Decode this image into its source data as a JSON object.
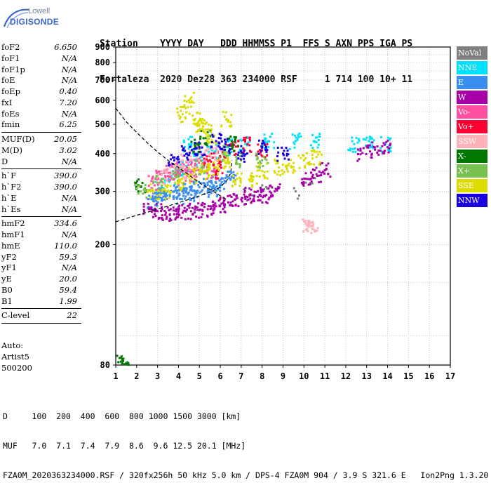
{
  "logo": {
    "line1": "Lowell",
    "line2": "DIGISONDE"
  },
  "header": {
    "row1": "Station    YYYY DAY   DDD HHMMSS P1  FFS S AXN PPS IGA PS",
    "row2": "Fortaleza  2020 Dez28 363 234000 RSF     1 714 100 10+ 11"
  },
  "params": [
    {
      "label": "foF2",
      "value": "6.650"
    },
    {
      "label": "foF1",
      "value": "N/A"
    },
    {
      "label": "foF1p",
      "value": "N/A"
    },
    {
      "label": "foE",
      "value": "N/A"
    },
    {
      "label": "foEp",
      "value": "0.40"
    },
    {
      "label": "fxI",
      "value": "7.20"
    },
    {
      "label": "foEs",
      "value": "N/A"
    },
    {
      "label": "fmin",
      "value": "6.25"
    },
    {
      "sep": true
    },
    {
      "label": "MUF(D)",
      "value": "20.05"
    },
    {
      "label": "M(D)",
      "value": "3.02"
    },
    {
      "label": "D",
      "value": "N/A"
    },
    {
      "sep": true
    },
    {
      "label": "h`F",
      "value": "390.0"
    },
    {
      "label": "h`F2",
      "value": "390.0"
    },
    {
      "label": "h`E",
      "value": "N/A"
    },
    {
      "label": "h`Es",
      "value": "N/A"
    },
    {
      "sep": true
    },
    {
      "label": "hmF2",
      "value": "334.6"
    },
    {
      "label": "hmF1",
      "value": "N/A"
    },
    {
      "label": "hmE",
      "value": "110.0"
    },
    {
      "label": "yF2",
      "value": "59.3"
    },
    {
      "label": "yF1",
      "value": "N/A"
    },
    {
      "label": "yE",
      "value": "20.0"
    },
    {
      "label": "B0",
      "value": "59.4"
    },
    {
      "label": "B1",
      "value": "1.99"
    },
    {
      "sep": true
    },
    {
      "label": "C-level",
      "value": "22"
    },
    {
      "sep": true
    }
  ],
  "auto": {
    "line1": "Auto:",
    "line2": "Artist5",
    "line3": "500200"
  },
  "legend": [
    {
      "label": "NoVal",
      "color": "#808080"
    },
    {
      "label": "NNE",
      "color": "#00e0ff"
    },
    {
      "label": "E",
      "color": "#3b8ef0"
    },
    {
      "label": "W",
      "color": "#a800a8"
    },
    {
      "label": "Vo-",
      "color": "#ff4fa0"
    },
    {
      "label": "Vo+",
      "color": "#ff0033"
    },
    {
      "label": "SSW",
      "color": "#ffb0b8"
    },
    {
      "label": "X-",
      "color": "#007800"
    },
    {
      "label": "X+",
      "color": "#78c050"
    },
    {
      "label": "SSE",
      "color": "#dcdc00"
    },
    {
      "label": "NNW",
      "color": "#1800e0"
    }
  ],
  "chart_data": {
    "type": "scatter",
    "title": "",
    "xlabel": "",
    "ylabel": "",
    "xlim": [
      1,
      17
    ],
    "ylim": [
      80,
      900
    ],
    "y_scale": "log",
    "x_ticks": [
      1,
      2,
      3,
      4,
      5,
      6,
      7,
      8,
      9,
      10,
      11,
      12,
      13,
      14,
      15,
      16,
      17
    ],
    "y_ticks": [
      80,
      200,
      300,
      400,
      500,
      600,
      700,
      800,
      900
    ],
    "grid": true,
    "series": [
      {
        "name": "NoVal",
        "color": "#808080",
        "points": [
          [
            7.4,
            290
          ],
          [
            8.1,
            305
          ],
          [
            9.6,
            300
          ],
          [
            10.3,
            320
          ]
        ]
      },
      {
        "name": "NNE",
        "color": "#00e0ff",
        "points": [
          [
            3.6,
            335
          ],
          [
            4.0,
            350
          ],
          [
            4.4,
            360
          ],
          [
            5.0,
            380
          ],
          [
            5.6,
            410
          ],
          [
            6.3,
            420
          ],
          [
            7.2,
            430
          ],
          [
            8.3,
            440
          ],
          [
            9.6,
            440
          ],
          [
            10.5,
            440
          ],
          [
            12.4,
            430
          ],
          [
            13.1,
            440
          ],
          [
            13.9,
            430
          ],
          [
            4.5,
            430
          ],
          [
            3.2,
            310
          ]
        ]
      },
      {
        "name": "E",
        "color": "#3b8ef0",
        "points": [
          [
            2.6,
            290
          ],
          [
            3.0,
            295
          ],
          [
            3.4,
            295
          ],
          [
            3.8,
            300
          ],
          [
            4.2,
            300
          ],
          [
            4.6,
            305
          ],
          [
            5.0,
            310
          ],
          [
            5.4,
            315
          ],
          [
            5.8,
            320
          ],
          [
            6.2,
            325
          ],
          [
            6.5,
            330
          ],
          [
            4.0,
            290
          ],
          [
            4.8,
            295
          ],
          [
            5.6,
            305
          ],
          [
            3.2,
            285
          ],
          [
            2.8,
            280
          ]
        ]
      },
      {
        "name": "W",
        "color": "#a800a8",
        "points": [
          [
            2.6,
            262
          ],
          [
            3.0,
            258
          ],
          [
            3.4,
            255
          ],
          [
            3.8,
            252
          ],
          [
            4.2,
            255
          ],
          [
            4.6,
            258
          ],
          [
            5.0,
            260
          ],
          [
            5.4,
            262
          ],
          [
            5.8,
            268
          ],
          [
            6.2,
            272
          ],
          [
            6.6,
            278
          ],
          [
            7.0,
            282
          ],
          [
            7.4,
            292
          ],
          [
            7.8,
            288
          ],
          [
            8.2,
            292
          ],
          [
            10.6,
            342
          ],
          [
            11.0,
            352
          ],
          [
            12.8,
            402
          ],
          [
            13.4,
            412
          ],
          [
            14.0,
            420
          ],
          [
            8.6,
            300
          ],
          [
            10.1,
            330
          ]
        ]
      },
      {
        "name": "Vo-",
        "color": "#ff4fa0",
        "points": [
          [
            3.2,
            340
          ],
          [
            3.6,
            345
          ],
          [
            4.0,
            355
          ],
          [
            4.4,
            360
          ],
          [
            4.8,
            365
          ],
          [
            5.2,
            360
          ],
          [
            5.6,
            350
          ],
          [
            3.8,
            330
          ],
          [
            4.6,
            340
          ],
          [
            2.8,
            320
          ]
        ]
      },
      {
        "name": "Vo+",
        "color": "#ff0033",
        "points": [
          [
            5.5,
            380
          ],
          [
            6.0,
            390
          ],
          [
            6.6,
            420
          ],
          [
            7.3,
            430
          ],
          [
            8.0,
            410
          ],
          [
            5.9,
            350
          ]
        ]
      },
      {
        "name": "SSW",
        "color": "#ffb0b8",
        "points": [
          [
            3.6,
            360
          ],
          [
            4.2,
            380
          ],
          [
            4.8,
            400
          ],
          [
            5.3,
            410
          ],
          [
            5.8,
            400
          ],
          [
            3.2,
            330
          ],
          [
            4.5,
            345
          ],
          [
            10.2,
            235
          ],
          [
            10.4,
            230
          ]
        ]
      },
      {
        "name": "X-",
        "color": "#007800",
        "points": [
          [
            1.3,
            81
          ],
          [
            1.5,
            81
          ],
          [
            2.2,
            310
          ],
          [
            4.8,
            420
          ],
          [
            5.3,
            450
          ],
          [
            6.6,
            430
          ]
        ]
      },
      {
        "name": "X+",
        "color": "#78c050",
        "points": [
          [
            2.2,
            300
          ],
          [
            3.0,
            320
          ],
          [
            4.0,
            340
          ],
          [
            5.1,
            360
          ],
          [
            6.2,
            400
          ],
          [
            7.0,
            380
          ],
          [
            8.0,
            380
          ]
        ]
      },
      {
        "name": "SSE",
        "color": "#dcdc00",
        "points": [
          [
            4.0,
            320
          ],
          [
            4.6,
            340
          ],
          [
            5.2,
            350
          ],
          [
            5.7,
            360
          ],
          [
            6.2,
            380
          ],
          [
            6.8,
            330
          ],
          [
            7.5,
            330
          ],
          [
            8.0,
            350
          ],
          [
            8.8,
            360
          ],
          [
            9.4,
            360
          ],
          [
            10.0,
            380
          ],
          [
            10.6,
            390
          ],
          [
            4.2,
            540
          ],
          [
            4.5,
            600
          ],
          [
            4.8,
            520
          ],
          [
            5.0,
            500
          ],
          [
            5.3,
            480
          ],
          [
            5.6,
            460
          ],
          [
            6.3,
            520
          ],
          [
            3.4,
            300
          ],
          [
            2.8,
            300
          ]
        ]
      },
      {
        "name": "NNW",
        "color": "#1800e0",
        "points": [
          [
            3.8,
            380
          ],
          [
            4.4,
            400
          ],
          [
            5.0,
            420
          ],
          [
            5.8,
            440
          ],
          [
            6.2,
            420
          ],
          [
            7.1,
            400
          ],
          [
            8.0,
            420
          ],
          [
            9.0,
            400
          ]
        ]
      }
    ],
    "model_curves": [
      {
        "name": "upper",
        "style": "dashed",
        "points": [
          [
            1.0,
            565
          ],
          [
            1.5,
            510
          ],
          [
            2.0,
            470
          ],
          [
            2.5,
            435
          ],
          [
            3.0,
            405
          ],
          [
            3.5,
            380
          ],
          [
            4.0,
            360
          ],
          [
            4.5,
            340
          ],
          [
            5.0,
            320
          ],
          [
            5.5,
            305
          ],
          [
            6.0,
            290
          ],
          [
            6.3,
            282
          ]
        ]
      },
      {
        "name": "lower",
        "style": "dashed",
        "points": [
          [
            1.0,
            238
          ],
          [
            2.0,
            250
          ],
          [
            3.0,
            262
          ],
          [
            4.0,
            275
          ],
          [
            5.0,
            290
          ],
          [
            5.6,
            300
          ],
          [
            6.0,
            310
          ],
          [
            6.3,
            325
          ],
          [
            6.5,
            345
          ],
          [
            6.55,
            380
          ]
        ]
      }
    ]
  },
  "footer": {
    "row1": "D     100  200  400  600  800 1000 1500 3000 [km]",
    "row2": "MUF   7.0  7.1  7.4  7.9  8.6  9.6 12.5 20.1 [MHz]",
    "row3": "FZA0M_2020363234000.RSF / 320fx256h 50 kHz 5.0 km / DPS-4 FZA0M 904 / 3.9 S 321.6 E   Ion2Png 1.3.20"
  }
}
